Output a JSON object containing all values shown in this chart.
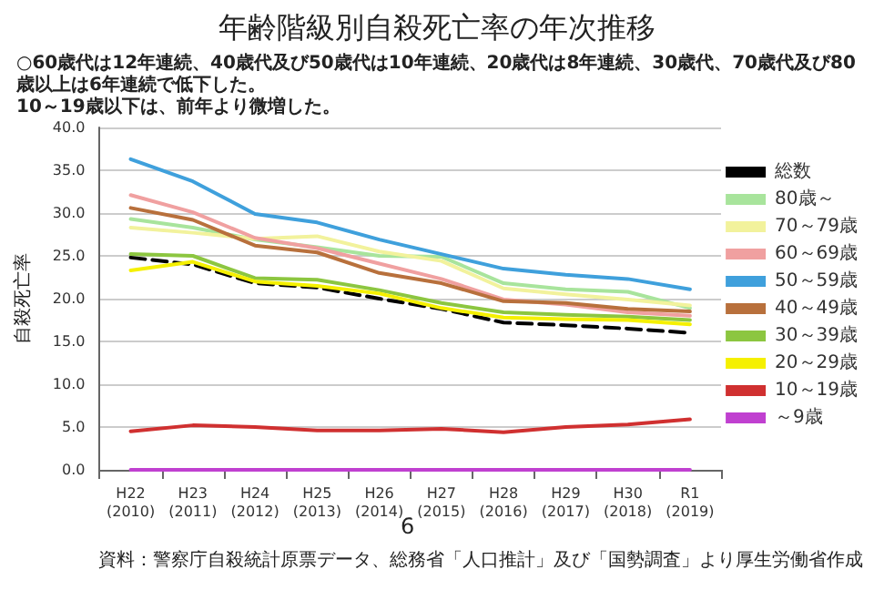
{
  "chart_data": {
    "type": "line",
    "title": "年齢階級別自殺死亡率の年次推移",
    "subtitle": "○60歳代は12年連続、40歳代及び50歳代は10年連続、20歳代は8年連続、30歳代、70歳代及び80歳以上は6年連続で低下した。\n10～19歳以下は、前年より微増した。",
    "ylabel": "自殺死亡率",
    "annotations": [
      "6",
      "資料：警察庁自殺統計原票データ、総務省「人口推計」及び「国勢調査」より厚生労働省作成"
    ],
    "categories": [
      "H22\n(2010)",
      "H23\n(2011)",
      "H24\n(2012)",
      "H25\n(2013)",
      "H26\n(2014)",
      "H27\n(2015)",
      "H28\n(2016)",
      "H29\n(2017)",
      "H30\n(2018)",
      "R1\n(2019)"
    ],
    "series": [
      {
        "name": "総数",
        "color": "#000000",
        "line_style": "dashed",
        "values": [
          24.8,
          24.0,
          21.8,
          21.3,
          20.0,
          18.8,
          17.2,
          16.9,
          16.5,
          16.0
        ]
      },
      {
        "name": "80歳～",
        "color": "#a8e49c",
        "values": [
          29.3,
          28.3,
          26.9,
          26.0,
          25.0,
          24.9,
          21.8,
          21.1,
          20.8,
          18.9
        ]
      },
      {
        "name": "70～79歳",
        "color": "#f2f29c",
        "values": [
          28.3,
          27.7,
          27.0,
          27.3,
          25.5,
          24.4,
          21.2,
          20.5,
          19.9,
          19.2
        ]
      },
      {
        "name": "60～69歳",
        "color": "#f0a0a0",
        "values": [
          32.1,
          30.1,
          27.1,
          25.9,
          24.1,
          22.3,
          19.9,
          19.3,
          18.4,
          18.0
        ]
      },
      {
        "name": "50～59歳",
        "color": "#3fa0dc",
        "values": [
          36.3,
          33.7,
          29.9,
          28.9,
          26.9,
          25.2,
          23.5,
          22.8,
          22.3,
          21.1
        ]
      },
      {
        "name": "40～49歳",
        "color": "#b8703c",
        "values": [
          30.6,
          29.2,
          26.2,
          25.4,
          23.0,
          21.8,
          19.7,
          19.5,
          18.8,
          18.5
        ]
      },
      {
        "name": "30～39歳",
        "color": "#8cc640",
        "values": [
          25.2,
          25.0,
          22.4,
          22.2,
          21.0,
          19.5,
          18.4,
          18.1,
          17.9,
          17.5
        ]
      },
      {
        "name": "20～29歳",
        "color": "#f5f000",
        "values": [
          23.3,
          24.3,
          22.0,
          21.5,
          20.6,
          18.9,
          17.8,
          17.6,
          17.5,
          17.0
        ]
      },
      {
        "name": "10～19歳",
        "color": "#d03030",
        "values": [
          4.5,
          5.2,
          5.0,
          4.6,
          4.6,
          4.8,
          4.4,
          5.0,
          5.3,
          5.9
        ]
      },
      {
        "name": "～9歳",
        "color": "#c040d0",
        "values": [
          0,
          0,
          0,
          0,
          0,
          0,
          0,
          0,
          0,
          0
        ]
      }
    ],
    "ylim": [
      0,
      40
    ],
    "yticks": [
      {
        "value": 0,
        "label": "0.0"
      },
      {
        "value": 5,
        "label": "5.0"
      },
      {
        "value": 10,
        "label": "10.0"
      },
      {
        "value": 15,
        "label": "15.0"
      },
      {
        "value": 20,
        "label": "20.0"
      },
      {
        "value": 25,
        "label": "25.0"
      },
      {
        "value": 30,
        "label": "30.0"
      },
      {
        "value": 35,
        "label": "35.0"
      },
      {
        "value": 40,
        "label": "40.0"
      }
    ],
    "grid": "y",
    "legend": "right",
    "marker": "none",
    "line_style": "solid"
  }
}
